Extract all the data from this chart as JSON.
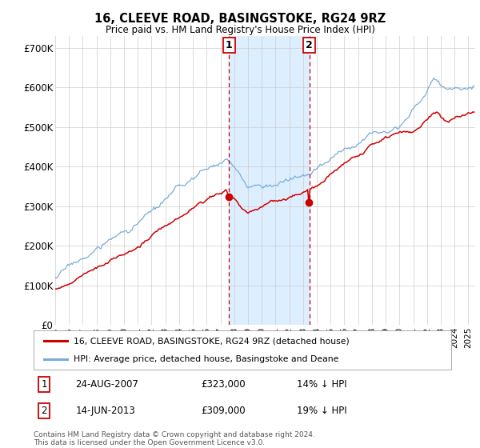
{
  "title": "16, CLEEVE ROAD, BASINGSTOKE, RG24 9RZ",
  "subtitle": "Price paid vs. HM Land Registry's House Price Index (HPI)",
  "ylim": [
    0,
    730000
  ],
  "yticks": [
    0,
    100000,
    200000,
    300000,
    400000,
    500000,
    600000,
    700000
  ],
  "ytick_labels": [
    "£0",
    "£100K",
    "£200K",
    "£300K",
    "£400K",
    "£500K",
    "£600K",
    "£700K"
  ],
  "xlim_start": 1995,
  "xlim_end": 2025.5,
  "hpi_color": "#7aacda",
  "price_color": "#cc0000",
  "shaded_color": "#ddeeff",
  "vline_color": "#cc0000",
  "annotation_box_color": "#cc0000",
  "legend_label_price": "16, CLEEVE ROAD, BASINGSTOKE, RG24 9RZ (detached house)",
  "legend_label_hpi": "HPI: Average price, detached house, Basingstoke and Deane",
  "event1_date": 2007.62,
  "event1_label": "1",
  "event1_price": 323000,
  "event1_text": "24-AUG-2007",
  "event1_pct": "14% ↓ HPI",
  "event2_date": 2013.45,
  "event2_label": "2",
  "event2_price": 309000,
  "event2_text": "14-JUN-2013",
  "event2_pct": "19% ↓ HPI",
  "shaded_start": 2007.62,
  "shaded_end": 2013.45,
  "footer": "Contains HM Land Registry data © Crown copyright and database right 2024.\nThis data is licensed under the Open Government Licence v3.0.",
  "background_color": "#ffffff",
  "grid_color": "#cccccc"
}
